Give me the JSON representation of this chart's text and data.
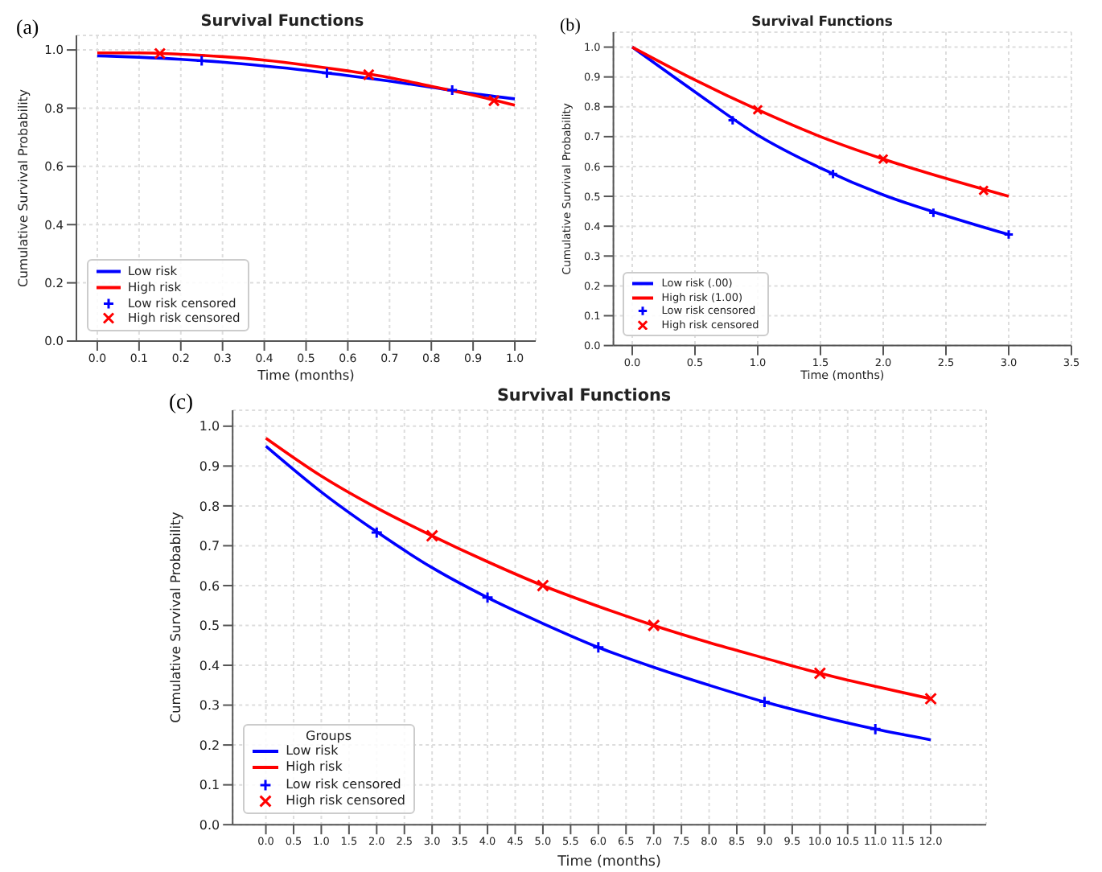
{
  "chart_data": [
    {
      "type": "line",
      "title": "Survival Functions",
      "annotations": [
        "(a)"
      ],
      "xlabel": "Time (months)",
      "ylabel": "Cumulative Survival Probability",
      "xlim": [
        -0.05,
        1.05
      ],
      "ylim": [
        0,
        1.05
      ],
      "xticks": [
        {
          "value": 0,
          "label": "0.0"
        },
        {
          "value": 0.1,
          "label": "0.1"
        },
        {
          "value": 0.2,
          "label": "0.2"
        },
        {
          "value": 0.3,
          "label": "0.3"
        },
        {
          "value": 0.4,
          "label": "0.4"
        },
        {
          "value": 0.5,
          "label": "0.5"
        },
        {
          "value": 0.6,
          "label": "0.6"
        },
        {
          "value": 0.7,
          "label": "0.7"
        },
        {
          "value": 0.8,
          "label": "0.8"
        },
        {
          "value": 0.9,
          "label": "0.9"
        },
        {
          "value": 1,
          "label": "1.0"
        }
      ],
      "yticks": [
        {
          "value": 0,
          "label": "0.0"
        },
        {
          "value": 0.2,
          "label": "0.2"
        },
        {
          "value": 0.4,
          "label": "0.4"
        },
        {
          "value": 0.6,
          "label": "0.6"
        },
        {
          "value": 0.8,
          "label": "0.8"
        },
        {
          "value": 1,
          "label": "1.0"
        }
      ],
      "grid": true,
      "legend": "bottom left",
      "line_style": "solid",
      "series": [
        {
          "name": "Low risk",
          "type": "line",
          "color": "#0000ff",
          "x": [
            0,
            0.1,
            0.2,
            0.3,
            0.4,
            0.5,
            0.6,
            0.7,
            0.8,
            0.9,
            1.0
          ],
          "values": [
            0.98,
            0.975,
            0.968,
            0.958,
            0.945,
            0.93,
            0.912,
            0.893,
            0.872,
            0.85,
            0.832
          ]
        },
        {
          "name": "High risk",
          "type": "line",
          "color": "#ff0000",
          "x": [
            0,
            0.1,
            0.2,
            0.3,
            0.4,
            0.5,
            0.6,
            0.7,
            0.8,
            0.9,
            1.0
          ],
          "values": [
            0.99,
            0.99,
            0.985,
            0.977,
            0.965,
            0.948,
            0.928,
            0.905,
            0.875,
            0.845,
            0.81
          ]
        },
        {
          "name": "Low risk censored",
          "type": "scatter",
          "marker": "cross",
          "color": "#0000ff",
          "x": [
            0.25,
            0.55,
            0.85
          ],
          "values": [
            0.963,
            0.921,
            0.862
          ]
        },
        {
          "name": "High risk censored",
          "type": "scatter",
          "marker": "x",
          "color": "#ff0000",
          "x": [
            0.15,
            0.65,
            0.95
          ],
          "values": [
            0.988,
            0.915,
            0.826
          ]
        }
      ]
    },
    {
      "type": "line",
      "title": "Survival Functions",
      "annotations": [
        "(b)"
      ],
      "xlabel": "Time (months)",
      "ylabel": "Cumulative Survival Probability",
      "xlim": [
        -0.15,
        3.5
      ],
      "ylim": [
        0,
        1.05
      ],
      "xticks": [
        {
          "value": 0,
          "label": "0.0"
        },
        {
          "value": 0.5,
          "label": "0.5"
        },
        {
          "value": 1,
          "label": "1.0"
        },
        {
          "value": 1.5,
          "label": "1.5"
        },
        {
          "value": 2,
          "label": "2.0"
        },
        {
          "value": 2.5,
          "label": "2.5"
        },
        {
          "value": 3,
          "label": "3.0"
        },
        {
          "value": 3.5,
          "label": "3.5"
        }
      ],
      "yticks": [
        {
          "value": 0,
          "label": "0.0"
        },
        {
          "value": 0.1,
          "label": "0.1"
        },
        {
          "value": 0.2,
          "label": "0.2"
        },
        {
          "value": 0.3,
          "label": "0.3"
        },
        {
          "value": 0.4,
          "label": "0.4"
        },
        {
          "value": 0.5,
          "label": "0.5"
        },
        {
          "value": 0.6,
          "label": "0.6"
        },
        {
          "value": 0.7,
          "label": "0.7"
        },
        {
          "value": 0.8,
          "label": "0.8"
        },
        {
          "value": 0.9,
          "label": "0.9"
        },
        {
          "value": 1,
          "label": "1.0"
        }
      ],
      "grid": true,
      "legend": "bottom left",
      "line_style": "solid",
      "series": [
        {
          "name": "Low risk (.00)",
          "type": "line",
          "color": "#0000ff",
          "x": [
            0,
            0.5,
            1,
            1.5,
            2,
            2.5,
            3
          ],
          "values": [
            1,
            0.85,
            0.705,
            0.595,
            0.505,
            0.435,
            0.372
          ]
        },
        {
          "name": "High risk (1.00)",
          "type": "line",
          "color": "#ff0000",
          "x": [
            0,
            0.5,
            1,
            1.5,
            2,
            2.5,
            3
          ],
          "values": [
            1,
            0.89,
            0.79,
            0.7,
            0.625,
            0.56,
            0.5
          ]
        },
        {
          "name": "Low risk censored",
          "type": "scatter",
          "marker": "cross",
          "color": "#0000ff",
          "x": [
            0.8,
            1.6,
            2.4,
            3.0
          ],
          "values": [
            0.755,
            0.575,
            0.445,
            0.372
          ]
        },
        {
          "name": "High risk censored",
          "type": "scatter",
          "marker": "x",
          "color": "#ff0000",
          "x": [
            1.0,
            2.0,
            2.8
          ],
          "values": [
            0.79,
            0.625,
            0.52
          ]
        }
      ]
    },
    {
      "type": "line",
      "title": "Survival Functions",
      "annotations": [
        "(c)"
      ],
      "xlabel": "Time (months)",
      "ylabel": "Cumulative Survival Probability",
      "legend_title": "Groups",
      "xlim": [
        -0.6,
        13
      ],
      "ylim": [
        0,
        1.04
      ],
      "xticks": [
        {
          "value": 0,
          "label": "0.0"
        },
        {
          "value": 0.5,
          "label": "0.5"
        },
        {
          "value": 1,
          "label": "1.0"
        },
        {
          "value": 1.5,
          "label": "1.5"
        },
        {
          "value": 2,
          "label": "2.0"
        },
        {
          "value": 2.5,
          "label": "2.5"
        },
        {
          "value": 3,
          "label": "3.0"
        },
        {
          "value": 3.5,
          "label": "3.5"
        },
        {
          "value": 4,
          "label": "4.0"
        },
        {
          "value": 4.5,
          "label": "4.5"
        },
        {
          "value": 5,
          "label": "5.0"
        },
        {
          "value": 5.5,
          "label": "5.5"
        },
        {
          "value": 6,
          "label": "6.0"
        },
        {
          "value": 6.5,
          "label": "6.5"
        },
        {
          "value": 7,
          "label": "7.0"
        },
        {
          "value": 7.5,
          "label": "7.5"
        },
        {
          "value": 8,
          "label": "8.0"
        },
        {
          "value": 8.5,
          "label": "8.5"
        },
        {
          "value": 9,
          "label": "9.0"
        },
        {
          "value": 9.5,
          "label": "9.5"
        },
        {
          "value": 10,
          "label": "10.0"
        },
        {
          "value": 10.5,
          "label": "10.5"
        },
        {
          "value": 11,
          "label": "11.0"
        },
        {
          "value": 11.5,
          "label": "11.5"
        },
        {
          "value": 12,
          "label": "12.0"
        }
      ],
      "yticks": [
        {
          "value": 0,
          "label": "0.0"
        },
        {
          "value": 0.1,
          "label": "0.1"
        },
        {
          "value": 0.2,
          "label": "0.2"
        },
        {
          "value": 0.3,
          "label": "0.3"
        },
        {
          "value": 0.4,
          "label": "0.4"
        },
        {
          "value": 0.5,
          "label": "0.5"
        },
        {
          "value": 0.6,
          "label": "0.6"
        },
        {
          "value": 0.7,
          "label": "0.7"
        },
        {
          "value": 0.8,
          "label": "0.8"
        },
        {
          "value": 0.9,
          "label": "0.9"
        },
        {
          "value": 1,
          "label": "1.0"
        }
      ],
      "grid": true,
      "legend": "bottom left",
      "line_style": "solid",
      "series": [
        {
          "name": "Low risk",
          "type": "line",
          "color": "#0000ff",
          "x": [
            0,
            1,
            2,
            3,
            4,
            5,
            6,
            7,
            8,
            9,
            10,
            11,
            12
          ],
          "values": [
            0.95,
            0.835,
            0.735,
            0.645,
            0.57,
            0.505,
            0.445,
            0.395,
            0.35,
            0.308,
            0.272,
            0.24,
            0.213
          ]
        },
        {
          "name": "High risk",
          "type": "line",
          "color": "#ff0000",
          "x": [
            0,
            1,
            2,
            3,
            4,
            5,
            6,
            7,
            8,
            9,
            10,
            11,
            12
          ],
          "values": [
            0.97,
            0.875,
            0.795,
            0.725,
            0.66,
            0.6,
            0.548,
            0.5,
            0.457,
            0.418,
            0.38,
            0.347,
            0.316
          ]
        },
        {
          "name": "Low risk censored",
          "type": "scatter",
          "marker": "cross",
          "color": "#0000ff",
          "x": [
            2,
            4,
            6,
            9,
            11
          ],
          "values": [
            0.733,
            0.57,
            0.445,
            0.308,
            0.24
          ]
        },
        {
          "name": "High risk censored",
          "type": "scatter",
          "marker": "x",
          "color": "#ff0000",
          "x": [
            3,
            5,
            7,
            10,
            12
          ],
          "values": [
            0.725,
            0.6,
            0.5,
            0.38,
            0.316
          ]
        }
      ]
    }
  ]
}
